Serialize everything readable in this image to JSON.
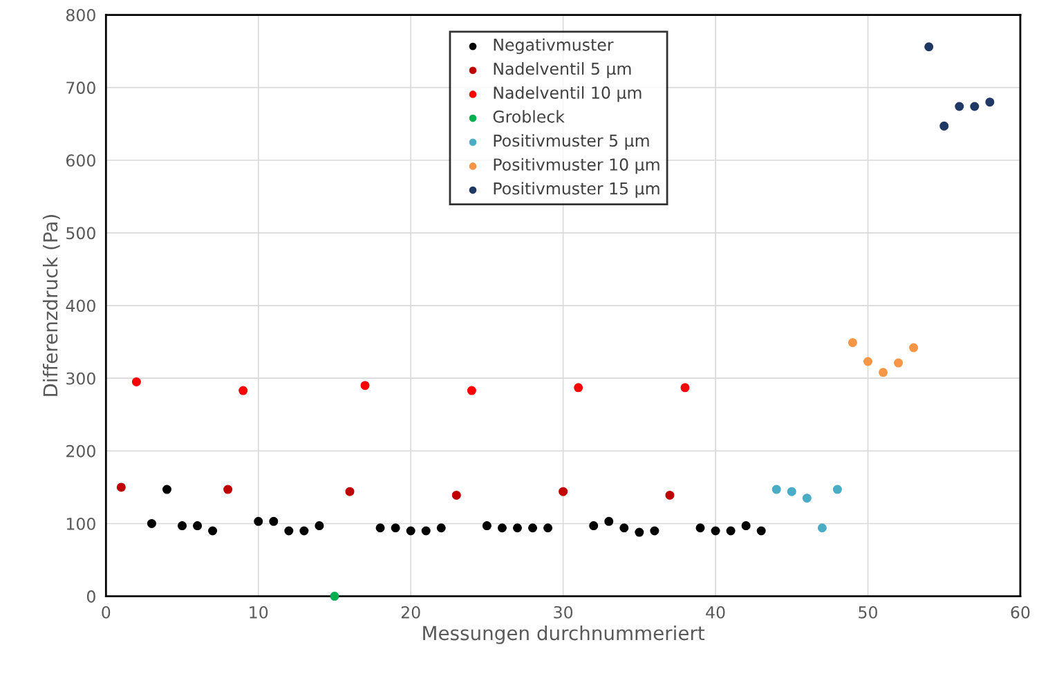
{
  "chart_data": {
    "type": "scatter",
    "xlabel": "Messungen durchnummeriert",
    "ylabel": "Differenzdruck (Pa)",
    "xlim": [
      0,
      60
    ],
    "xticks": [
      0,
      10,
      20,
      30,
      40,
      50,
      60
    ],
    "ylim": [
      0,
      800
    ],
    "yticks": [
      0,
      100,
      200,
      300,
      400,
      500,
      600,
      700,
      800
    ],
    "grid": true,
    "legend": "top",
    "marker": "circle",
    "series": [
      {
        "name": "Negativmuster",
        "color": "#000000",
        "x": [
          3,
          4,
          5,
          6,
          7,
          10,
          11,
          12,
          13,
          14,
          18,
          19,
          20,
          21,
          22,
          25,
          26,
          27,
          28,
          29,
          32,
          33,
          34,
          35,
          36,
          39,
          40,
          41,
          42,
          43
        ],
        "values": [
          100,
          147,
          97,
          97,
          90,
          103,
          103,
          90,
          90,
          97,
          94,
          94,
          90,
          90,
          94,
          97,
          94,
          94,
          94,
          94,
          97,
          103,
          94,
          88,
          90,
          94,
          90,
          90,
          97,
          90
        ]
      },
      {
        "name": "Nadelventil 5 µm",
        "color": "#c00000",
        "x": [
          1,
          8,
          16,
          23,
          30,
          37
        ],
        "values": [
          150,
          147,
          144,
          139,
          144,
          139
        ]
      },
      {
        "name": "Nadelventil 10 µm",
        "color": "#ff0000",
        "x": [
          2,
          9,
          17,
          24,
          31,
          38
        ],
        "values": [
          295,
          283,
          290,
          283,
          287,
          287
        ]
      },
      {
        "name": "Grobleck",
        "color": "#00b050",
        "x": [
          15
        ],
        "values": [
          0
        ]
      },
      {
        "name": "Positivmuster 5 µm",
        "color": "#4bacc6",
        "x": [
          44,
          45,
          46,
          47,
          48
        ],
        "values": [
          147,
          144,
          135,
          94,
          147
        ]
      },
      {
        "name": "Positivmuster 10 µm",
        "color": "#f79646",
        "x": [
          49,
          50,
          51,
          52,
          53
        ],
        "values": [
          349,
          323,
          308,
          321,
          342
        ]
      },
      {
        "name": "Positivmuster 15 µm",
        "color": "#1f3864",
        "x": [
          54,
          55,
          56,
          57,
          58
        ],
        "values": [
          756,
          647,
          674,
          674,
          680
        ]
      }
    ]
  }
}
